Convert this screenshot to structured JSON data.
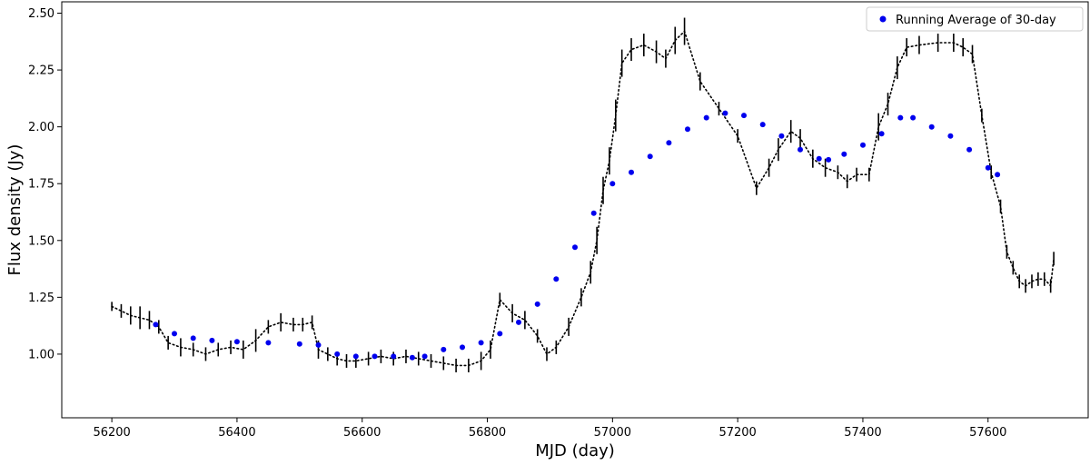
{
  "chart_data": {
    "type": "scatter",
    "xlabel": "MJD (day)",
    "ylabel": "Flux density (Jy)",
    "xlim": [
      56120,
      57760
    ],
    "ylim": [
      0.72,
      2.55
    ],
    "xticks": [
      56200,
      56400,
      56600,
      56800,
      57000,
      57200,
      57400,
      57600
    ],
    "yticks": [
      1.0,
      1.25,
      1.5,
      1.75,
      2.0,
      2.25,
      2.5
    ],
    "xtick_labels": [
      "56200",
      "56400",
      "56600",
      "56800",
      "57000",
      "57200",
      "57400",
      "57600"
    ],
    "ytick_labels": [
      "1.00",
      "1.25",
      "1.50",
      "1.75",
      "2.00",
      "2.25",
      "2.50"
    ],
    "grid": false,
    "legend_position": "top-right",
    "colors": {
      "observed": "#000000",
      "running_average": "#0000ee"
    },
    "series": [
      {
        "style": "dotted-line-with-errorbars",
        "x": [
          56200,
          56215,
          56230,
          56245,
          56260,
          56275,
          56290,
          56310,
          56330,
          56350,
          56370,
          56390,
          56410,
          56430,
          56450,
          56470,
          56490,
          56505,
          56520,
          56530,
          56545,
          56560,
          56575,
          56590,
          56610,
          56630,
          56650,
          56670,
          56690,
          56710,
          56730,
          56750,
          56770,
          56790,
          56805,
          56820,
          56840,
          56860,
          56880,
          56895,
          56910,
          56930,
          56950,
          56965,
          56975,
          56985,
          56995,
          57005,
          57015,
          57030,
          57050,
          57070,
          57085,
          57100,
          57115,
          57140,
          57170,
          57200,
          57230,
          57250,
          57265,
          57285,
          57300,
          57320,
          57340,
          57360,
          57375,
          57390,
          57410,
          57425,
          57440,
          57455,
          57470,
          57490,
          57520,
          57545,
          57560,
          57575,
          57590,
          57605,
          57620,
          57630,
          57640,
          57650,
          57660,
          57670,
          57680,
          57690,
          57700,
          57705
        ],
        "y": [
          1.21,
          1.19,
          1.17,
          1.16,
          1.15,
          1.12,
          1.05,
          1.03,
          1.02,
          1.0,
          1.02,
          1.03,
          1.02,
          1.06,
          1.12,
          1.14,
          1.13,
          1.13,
          1.14,
          1.02,
          1.0,
          0.98,
          0.97,
          0.97,
          0.98,
          0.99,
          0.98,
          0.99,
          0.98,
          0.97,
          0.96,
          0.95,
          0.95,
          0.97,
          1.02,
          1.24,
          1.18,
          1.15,
          1.08,
          1.0,
          1.03,
          1.12,
          1.25,
          1.36,
          1.5,
          1.72,
          1.85,
          2.05,
          2.28,
          2.34,
          2.36,
          2.33,
          2.3,
          2.38,
          2.42,
          2.2,
          2.08,
          1.96,
          1.73,
          1.82,
          1.9,
          1.98,
          1.95,
          1.86,
          1.82,
          1.8,
          1.76,
          1.79,
          1.79,
          2.0,
          2.1,
          2.26,
          2.35,
          2.36,
          2.37,
          2.37,
          2.35,
          2.32,
          2.05,
          1.8,
          1.65,
          1.45,
          1.38,
          1.32,
          1.3,
          1.32,
          1.33,
          1.33,
          1.3,
          1.42
        ],
        "err": [
          0.02,
          0.03,
          0.04,
          0.05,
          0.04,
          0.03,
          0.03,
          0.04,
          0.03,
          0.03,
          0.03,
          0.03,
          0.04,
          0.05,
          0.03,
          0.04,
          0.03,
          0.03,
          0.03,
          0.04,
          0.03,
          0.03,
          0.03,
          0.03,
          0.03,
          0.03,
          0.03,
          0.03,
          0.03,
          0.03,
          0.03,
          0.03,
          0.03,
          0.04,
          0.04,
          0.03,
          0.04,
          0.04,
          0.03,
          0.03,
          0.03,
          0.04,
          0.04,
          0.05,
          0.06,
          0.06,
          0.06,
          0.07,
          0.06,
          0.05,
          0.05,
          0.05,
          0.04,
          0.06,
          0.06,
          0.04,
          0.03,
          0.03,
          0.03,
          0.04,
          0.05,
          0.05,
          0.04,
          0.04,
          0.04,
          0.03,
          0.03,
          0.03,
          0.03,
          0.06,
          0.05,
          0.05,
          0.04,
          0.04,
          0.04,
          0.04,
          0.04,
          0.04,
          0.03,
          0.03,
          0.03,
          0.03,
          0.03,
          0.03,
          0.03,
          0.03,
          0.03,
          0.03,
          0.03,
          0.03
        ]
      },
      {
        "name": "Running Average of 30-day",
        "style": "dots",
        "x": [
          56270,
          56300,
          56330,
          56360,
          56400,
          56450,
          56500,
          56530,
          56560,
          56590,
          56620,
          56650,
          56680,
          56700,
          56730,
          56760,
          56790,
          56820,
          56850,
          56880,
          56910,
          56940,
          56970,
          57000,
          57030,
          57060,
          57090,
          57120,
          57150,
          57180,
          57210,
          57240,
          57270,
          57300,
          57330,
          57345,
          57370,
          57400,
          57430,
          57460,
          57480,
          57510,
          57540,
          57570,
          57600,
          57615
        ],
        "y": [
          1.13,
          1.09,
          1.07,
          1.06,
          1.055,
          1.05,
          1.045,
          1.04,
          1.0,
          0.99,
          0.99,
          0.99,
          0.985,
          0.99,
          1.02,
          1.03,
          1.05,
          1.09,
          1.14,
          1.22,
          1.33,
          1.47,
          1.62,
          1.75,
          1.8,
          1.87,
          1.93,
          1.99,
          2.04,
          2.06,
          2.05,
          2.01,
          1.96,
          1.9,
          1.86,
          1.855,
          1.88,
          1.92,
          1.97,
          2.04,
          2.04,
          2.0,
          1.96,
          1.9,
          1.82,
          1.79
        ]
      }
    ]
  }
}
